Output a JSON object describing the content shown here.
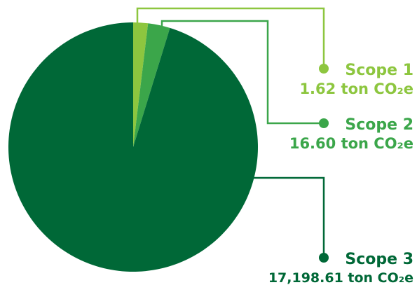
{
  "chart_data": {
    "type": "pie",
    "series": [
      {
        "name": "Scope 1",
        "value": 1.62,
        "value_label": "1.62 ton CO₂e",
        "color": "#8dc63f"
      },
      {
        "name": "Scope 2",
        "value": 16.6,
        "value_label": "16.60 ton CO₂e",
        "color": "#3ba64a"
      },
      {
        "name": "Scope 3",
        "value": 17198.61,
        "value_label": "17,198.61 ton CO₂e",
        "color": "#006837"
      }
    ],
    "legend": "callout-right"
  }
}
